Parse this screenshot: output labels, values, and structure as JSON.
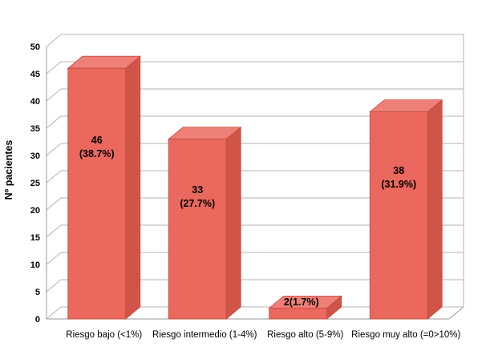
{
  "chart_data": {
    "type": "bar",
    "title": "",
    "xlabel": "",
    "ylabel": "Nº pacientes",
    "ylim": [
      0,
      50
    ],
    "ytick_step": 5,
    "grid": true,
    "legend": "none",
    "style_3d": true,
    "categories": [
      "Riesgo bajo (<1%)",
      "Riesgo intermedio (1-4%)",
      "Riesgo alto (5-9%)",
      "Riesgo muy alto (=0>10%)"
    ],
    "values": [
      46,
      33,
      2,
      38
    ],
    "bar_labels": [
      [
        "46",
        "(38.7%)"
      ],
      [
        "33",
        "(27.7%)"
      ],
      [
        "2(1.7%)"
      ],
      [
        "38",
        "(31.9%)"
      ]
    ],
    "colors": {
      "bar_front": "#ea685d",
      "bar_top": "#ee8077",
      "bar_side": "#d05548",
      "bar_border": "#c14a3e",
      "grid_line": "#b3b3b3",
      "axis_line": "#9a9a9a",
      "text": "#000000"
    }
  }
}
